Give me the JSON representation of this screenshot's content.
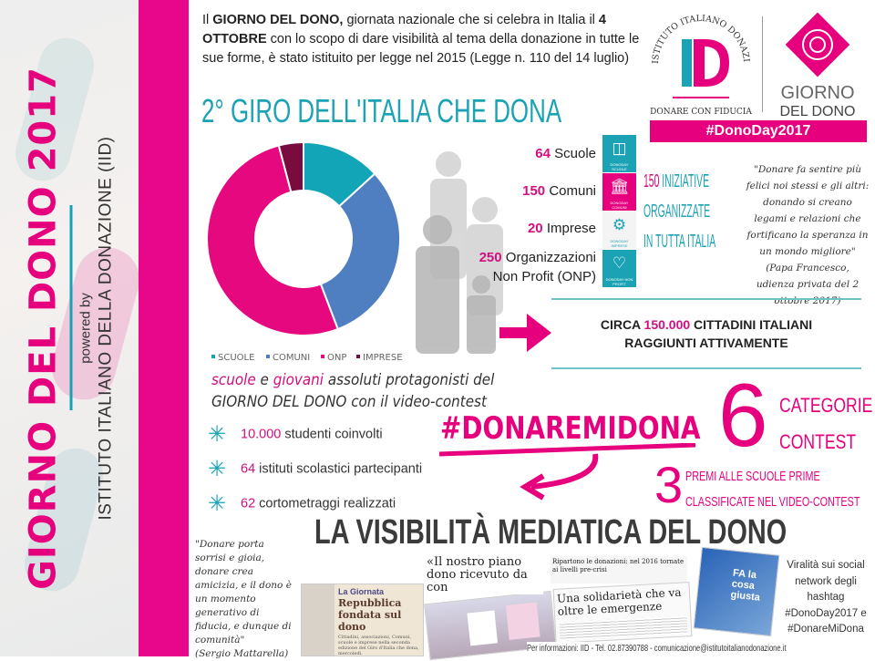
{
  "sidebar": {
    "title": "GIORNO DEL DONO 2017",
    "powered_by": "powered by",
    "institute": "ISTITUTO ITALIANO DELLA DONAZIONE (IID)"
  },
  "intro": {
    "p1": "Il ",
    "b1": "GIORNO DEL DONO,",
    "p2": " giornata nazionale che si celebra in Italia il ",
    "b2": "4 OTTOBRE",
    "p3": " con lo scopo di dare visibilità al tema della donazione in tutte le sue forme, è stato istituito per legge nel 2015 (Legge n. 110 del 14 luglio)"
  },
  "giro_title": "2° GIRO DELL'ITALIA CHE DONA",
  "logos": {
    "iid_arc": "ISTITUTO ITALIANO DONAZIONE",
    "iid_mark": "ID",
    "iid_tagline": "DONARE CON FIDUCIA",
    "gdd_line1": "GIORNO",
    "gdd_line2": "DEL DONO",
    "hashtag": "#DonoDay2017"
  },
  "chart_data": {
    "type": "pie",
    "variant": "donut",
    "categories": [
      "SCUOLE",
      "COMUNI",
      "ONP",
      "IMPRESE"
    ],
    "values": [
      64,
      150,
      250,
      20
    ],
    "colors": [
      "#12a5b7",
      "#4f7fc0",
      "#e5087e",
      "#7a0b3e"
    ],
    "legend": "bottom"
  },
  "stats": [
    {
      "num": "64",
      "label": "Scuole",
      "icon": "book-icon",
      "icon_text": "DONODAY SCUOLE",
      "color": "#1ba3b5"
    },
    {
      "num": "150",
      "label": "Comuni",
      "icon": "town-hall-icon",
      "icon_text": "DONODAY COMUNI",
      "color": "#e6007e"
    },
    {
      "num": "20",
      "label": "Imprese",
      "icon": "gears-icon",
      "icon_text": "DONODAY IMPRESE",
      "color": "#f4f4f4"
    },
    {
      "num": "250",
      "label": "Organizzazioni",
      "label2": "Non Profit (ONP)",
      "icon": "heart-icon",
      "icon_text": "DONODAY NON PROFIT",
      "color": "#1ba3b5"
    }
  ],
  "initiatives": {
    "num": "150",
    "l1": " INIZIATIVE",
    "l2": "ORGANIZZATE",
    "l3": "IN TUTTA ITALIA"
  },
  "quote_pope": {
    "text": "\"Donare fa sentire più felici noi stessi e gli altri: donando si creano legami e relazioni che fortificano la speranza in un mondo migliore\"",
    "author": "(Papa Francesco, udienza privata del 2 ottobre 2017)"
  },
  "citizens": {
    "pre": "CIRCA ",
    "num": "150.000",
    "post": " CITTADINI ITALIANI",
    "line2": "RAGGIUNTI ATTIVAMENTE"
  },
  "video": {
    "w1": "scuole",
    "w2": " e ",
    "w3": "giovani",
    "w4": " assoluti protagonisti del",
    "l2a": "GIORNO DEL DONO",
    "l2b": " con il video-contest"
  },
  "bullets": [
    {
      "num": "10.000",
      "text": " studenti coinvolti"
    },
    {
      "num": "64",
      "text": " istituti scolastici partecipanti"
    },
    {
      "num": "62",
      "text": " cortometraggi realizzati"
    }
  ],
  "contest": {
    "hashtag": "#DONAREMIDONA",
    "six": "6",
    "cat1": "CATEGORIE",
    "cat2": "CONTEST",
    "three": "3",
    "premi1": "PREMI ALLE SCUOLE PRIME",
    "premi2": "CLASSIFICATE NEL VIDEO-CONTEST"
  },
  "media_title": "LA VISIBILITÀ MEDIATICA DEL DONO",
  "quote_mattarella": {
    "text": "\"Donare porta sorrisi e gioia, donare crea amicizia, e il dono è un momento generativo di fiducia, e dunque di comunità\"",
    "author": "(Sergio Mattarella)"
  },
  "clippings": {
    "c1_head": "La Giornata",
    "c1_title": "Repubblica fondata sul dono",
    "c1_body": "Cittadini, associazioni, Comuni, scuole e imprese nella seconda edizione del Giro d'Italia che dona, mercoledì.",
    "c2": "«Il nostro piano dono ricevuto da con",
    "c3_head": "Ripartono le donazioni: nel 2016 tornate ai livelli pre-crisi",
    "c3_title": "Una solidarietà che va oltre le emergenze",
    "c4": "FA la cosa giusta"
  },
  "viral": {
    "text": "Viralità sui social network degli hashtag",
    "tag1": "#DonoDay2017 e",
    "tag2": "#DonareMiDona"
  },
  "footer": "Per informazioni: IID - Tel. 02.87390788 - comunicazione@istitutoitalianodonazione.it"
}
